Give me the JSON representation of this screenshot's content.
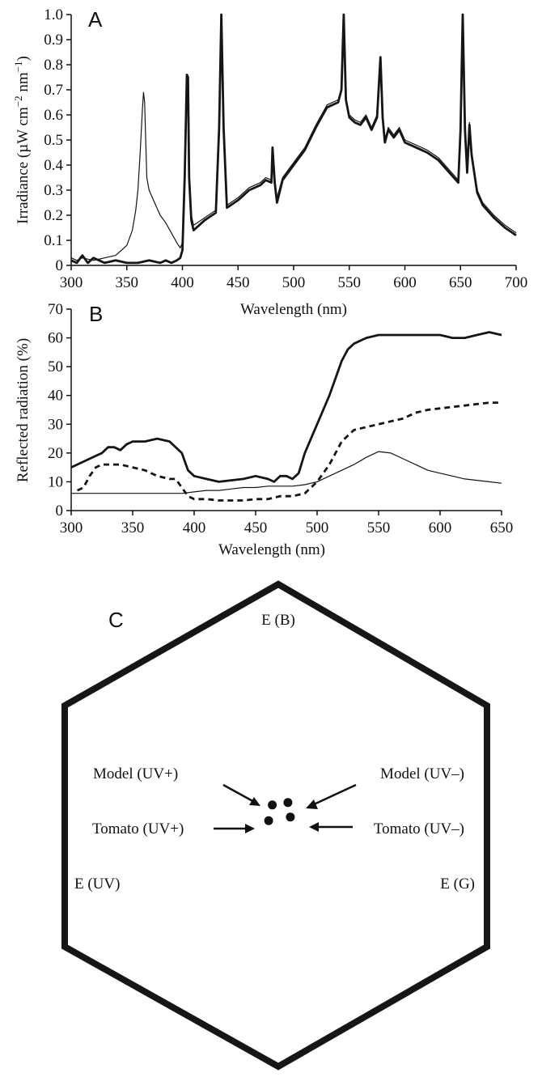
{
  "chart_data": [
    {
      "panel": "A",
      "type": "line",
      "xlabel": "Wavelength (nm)",
      "ylabel": "Irradiance (µW cm",
      "ylabel_sup1": "−2",
      "ylabel_mid": " nm",
      "ylabel_sup2": "−1",
      "ylabel_end": ")",
      "xlim": [
        300,
        700
      ],
      "ylim": [
        0,
        1.0
      ],
      "xticks": [
        "300",
        "350",
        "400",
        "450",
        "500",
        "550",
        "600",
        "650",
        "700"
      ],
      "yticks": [
        "0",
        "0.1",
        "0.2",
        "0.3",
        "0.4",
        "0.5",
        "0.6",
        "0.7",
        "0.8",
        "0.9",
        "1.0"
      ],
      "series": [
        {
          "style": "thin",
          "x": [
            300,
            305,
            310,
            320,
            330,
            340,
            345,
            350,
            355,
            358,
            360,
            362,
            364,
            365,
            366,
            367,
            368,
            370,
            375,
            380,
            385,
            390,
            395,
            398,
            400,
            402,
            404,
            405,
            406,
            408,
            410,
            420,
            430,
            433,
            435,
            437,
            440,
            450,
            460,
            470,
            475,
            480,
            481,
            483,
            485,
            490,
            500,
            510,
            520,
            530,
            540,
            543,
            545,
            547,
            550,
            555,
            560,
            565,
            570,
            575,
            578,
            580,
            582,
            585,
            590,
            595,
            600,
            610,
            620,
            630,
            640,
            648,
            650,
            652,
            654,
            656,
            658,
            660,
            665,
            670,
            680,
            690,
            700
          ],
          "y": [
            0.03,
            0.02,
            0.03,
            0.02,
            0.03,
            0.04,
            0.06,
            0.08,
            0.14,
            0.22,
            0.3,
            0.45,
            0.62,
            0.69,
            0.65,
            0.5,
            0.35,
            0.3,
            0.25,
            0.2,
            0.17,
            0.13,
            0.09,
            0.07,
            0.09,
            0.35,
            0.74,
            0.75,
            0.35,
            0.2,
            0.16,
            0.19,
            0.22,
            0.55,
            1.0,
            0.55,
            0.24,
            0.27,
            0.31,
            0.33,
            0.35,
            0.34,
            0.47,
            0.34,
            0.27,
            0.35,
            0.41,
            0.47,
            0.56,
            0.64,
            0.66,
            0.7,
            1.0,
            0.66,
            0.6,
            0.58,
            0.57,
            0.6,
            0.55,
            0.6,
            0.82,
            0.6,
            0.5,
            0.55,
            0.52,
            0.55,
            0.5,
            0.48,
            0.46,
            0.43,
            0.38,
            0.34,
            0.55,
            1.0,
            0.55,
            0.38,
            0.57,
            0.45,
            0.3,
            0.25,
            0.2,
            0.16,
            0.13
          ]
        },
        {
          "style": "thick",
          "x": [
            300,
            305,
            310,
            315,
            320,
            330,
            340,
            350,
            360,
            370,
            380,
            385,
            390,
            395,
            398,
            400,
            402,
            404,
            405,
            406,
            408,
            410,
            420,
            430,
            433,
            435,
            437,
            440,
            450,
            460,
            470,
            475,
            480,
            481,
            483,
            485,
            490,
            500,
            510,
            520,
            530,
            540,
            543,
            545,
            547,
            550,
            555,
            560,
            565,
            570,
            575,
            578,
            580,
            582,
            585,
            590,
            595,
            600,
            610,
            620,
            630,
            640,
            648,
            650,
            652,
            654,
            656,
            658,
            660,
            665,
            670,
            680,
            690,
            700
          ],
          "y": [
            0.02,
            0.01,
            0.04,
            0.01,
            0.03,
            0.01,
            0.02,
            0.01,
            0.01,
            0.02,
            0.01,
            0.02,
            0.01,
            0.02,
            0.03,
            0.06,
            0.35,
            0.76,
            0.75,
            0.35,
            0.18,
            0.14,
            0.18,
            0.21,
            0.55,
            1.0,
            0.55,
            0.23,
            0.26,
            0.3,
            0.32,
            0.34,
            0.33,
            0.47,
            0.33,
            0.25,
            0.34,
            0.4,
            0.46,
            0.55,
            0.63,
            0.65,
            0.7,
            1.0,
            0.66,
            0.59,
            0.57,
            0.56,
            0.59,
            0.54,
            0.59,
            0.83,
            0.59,
            0.49,
            0.54,
            0.51,
            0.54,
            0.49,
            0.47,
            0.45,
            0.42,
            0.37,
            0.33,
            0.54,
            1.0,
            0.54,
            0.37,
            0.56,
            0.44,
            0.29,
            0.24,
            0.19,
            0.15,
            0.12
          ]
        }
      ]
    },
    {
      "panel": "B",
      "type": "line",
      "xlabel": "Wavelength (nm)",
      "ylabel": "Reflected radiation (%)",
      "xlim": [
        300,
        650
      ],
      "ylim": [
        0,
        70
      ],
      "xticks": [
        "300",
        "350",
        "400",
        "450",
        "500",
        "550",
        "600",
        "650"
      ],
      "yticks": [
        "0",
        "10",
        "20",
        "30",
        "40",
        "50",
        "60",
        "70"
      ],
      "series": [
        {
          "style": "thick",
          "x": [
            300,
            310,
            320,
            325,
            330,
            335,
            340,
            345,
            350,
            360,
            370,
            380,
            390,
            395,
            400,
            410,
            420,
            430,
            440,
            450,
            460,
            465,
            470,
            475,
            480,
            485,
            490,
            495,
            500,
            505,
            510,
            515,
            520,
            525,
            530,
            540,
            550,
            560,
            570,
            580,
            590,
            600,
            610,
            620,
            630,
            640,
            650
          ],
          "y": [
            15,
            17,
            19,
            20,
            22,
            22,
            21,
            23,
            24,
            24,
            25,
            24,
            20,
            14,
            12,
            11,
            10,
            10.5,
            11,
            12,
            11,
            10,
            12,
            12,
            11,
            13,
            20,
            25,
            30,
            35,
            40,
            46,
            52,
            56,
            58,
            60,
            61,
            61,
            61,
            61,
            61,
            61,
            60,
            60,
            61,
            62,
            61
          ]
        },
        {
          "style": "dashed",
          "x": [
            305,
            310,
            315,
            320,
            325,
            330,
            340,
            350,
            360,
            370,
            380,
            385,
            390,
            395,
            400,
            410,
            420,
            430,
            440,
            450,
            460,
            470,
            480,
            490,
            495,
            500,
            505,
            510,
            515,
            520,
            525,
            530,
            540,
            550,
            560,
            570,
            580,
            590,
            600,
            610,
            620,
            630,
            640,
            650
          ],
          "y": [
            7,
            8,
            12,
            15,
            16,
            16,
            16,
            15,
            14,
            12,
            11,
            11,
            8,
            5,
            4,
            4,
            3.5,
            3.5,
            3.5,
            4,
            4,
            5,
            5,
            6,
            8,
            10,
            13,
            16,
            20,
            24,
            26,
            28,
            29,
            30,
            31,
            32,
            34,
            35,
            35.5,
            36,
            36.5,
            37,
            37.5,
            37.5
          ]
        },
        {
          "style": "thin",
          "x": [
            300,
            310,
            320,
            330,
            340,
            350,
            360,
            370,
            380,
            390,
            400,
            410,
            420,
            430,
            440,
            450,
            460,
            470,
            480,
            490,
            500,
            510,
            520,
            530,
            540,
            550,
            560,
            570,
            580,
            590,
            600,
            610,
            620,
            630,
            640,
            650
          ],
          "y": [
            6,
            6,
            6,
            6,
            6,
            6,
            6,
            6,
            6,
            6,
            6.5,
            7,
            7,
            7.5,
            8,
            8,
            8.5,
            8.5,
            8.5,
            9,
            10,
            12,
            14,
            16,
            18.5,
            20.5,
            20,
            18,
            16,
            14,
            13,
            12,
            11,
            10.5,
            10,
            9.5
          ]
        }
      ]
    },
    {
      "panel": "C",
      "type": "scatter",
      "vertex_labels": {
        "top": "E (B)",
        "left": "E (UV)",
        "right": "E (G)"
      },
      "points": [
        {
          "name": "Model (UV+)",
          "x": -0.025,
          "y": -0.09
        },
        {
          "name": "Model (UV–)",
          "x": 0.04,
          "y": -0.08
        },
        {
          "name": "Tomato (UV+)",
          "x": -0.04,
          "y": -0.155
        },
        {
          "name": "Tomato (UV–)",
          "x": 0.05,
          "y": -0.14
        }
      ]
    }
  ]
}
